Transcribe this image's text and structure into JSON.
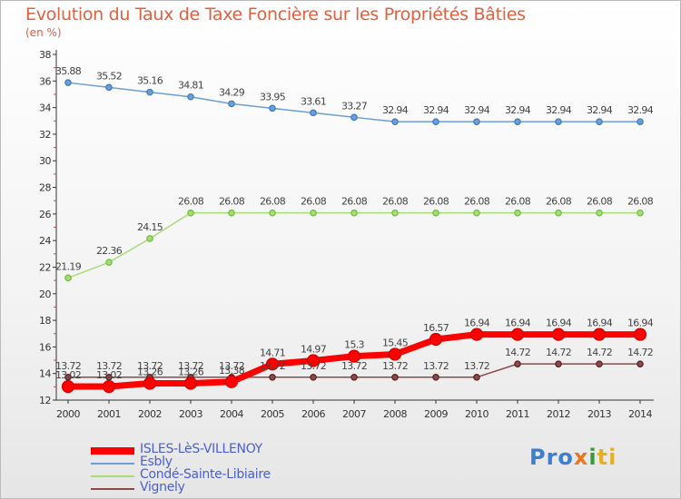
{
  "title": "Evolution du Taux de Taxe Foncière sur les Propriétés Bâties",
  "unit_label": "(en %)",
  "logo": {
    "p": "Pro",
    "x": "x",
    "i": "i",
    "ti": "ti"
  },
  "chart_data": {
    "type": "line",
    "title": "Evolution du Taux de Taxe Foncière sur les Propriétés Bâties",
    "ylabel": "(en %)",
    "xlabel": "",
    "ylim": [
      12,
      38
    ],
    "yticks": [
      12,
      14,
      16,
      18,
      20,
      22,
      24,
      26,
      28,
      30,
      32,
      34,
      36,
      38
    ],
    "grid": false,
    "legend_position": "bottom-left",
    "categories": [
      "2000",
      "2001",
      "2002",
      "2003",
      "2004",
      "2005",
      "2006",
      "2007",
      "2008",
      "2009",
      "2010",
      "2011",
      "2012",
      "2013",
      "2014"
    ],
    "series": [
      {
        "name": "ISLES-LèS-VILLENOY",
        "color": "#ff0000",
        "markerColor": "#cc0000",
        "width": 7,
        "markerR": 6.5,
        "values": [
          13.02,
          13.02,
          13.26,
          13.26,
          13.38,
          14.71,
          14.97,
          15.3,
          15.45,
          16.57,
          16.94,
          16.94,
          16.94,
          16.94,
          16.94
        ],
        "labels": [
          "13.02",
          "13.02",
          "13.26",
          "13.26",
          "13.38",
          "14.71",
          "14.97",
          "15.3",
          "15.45",
          "16.57",
          "16.94",
          "16.94",
          "16.94",
          "16.94",
          "16.94"
        ]
      },
      {
        "name": "Esbly",
        "color": "#6b9fd6",
        "markerColor": "#3a78c0",
        "width": 1.5,
        "markerR": 3.2,
        "values": [
          35.88,
          35.52,
          35.16,
          34.81,
          34.29,
          33.95,
          33.61,
          33.27,
          32.94,
          32.94,
          32.94,
          32.94,
          32.94,
          32.94,
          32.94
        ],
        "labels": [
          "35.88",
          "35.52",
          "35.16",
          "34.81",
          "34.29",
          "33.95",
          "33.61",
          "33.27",
          "32.94",
          "32.94",
          "32.94",
          "32.94",
          "32.94",
          "32.94",
          "32.94"
        ]
      },
      {
        "name": "Condé-Sainte-Libiaire",
        "color": "#a8dc78",
        "markerColor": "#6cbf3a",
        "width": 1.5,
        "markerR": 3.2,
        "values": [
          21.19,
          22.36,
          24.15,
          26.08,
          26.08,
          26.08,
          26.08,
          26.08,
          26.08,
          26.08,
          26.08,
          26.08,
          26.08,
          26.08,
          26.08
        ],
        "labels": [
          "21.19",
          "22.36",
          "24.15",
          "26.08",
          "26.08",
          "26.08",
          "26.08",
          "26.08",
          "26.08",
          "26.08",
          "26.08",
          "26.08",
          "26.08",
          "26.08",
          "26.08"
        ]
      },
      {
        "name": "Vignely",
        "color": "#8a4a4a",
        "markerColor": "#5a1e1e",
        "width": 1.5,
        "markerR": 3.2,
        "values": [
          13.72,
          13.72,
          13.72,
          13.72,
          13.72,
          13.72,
          13.72,
          13.72,
          13.72,
          13.72,
          13.72,
          14.72,
          14.72,
          14.72,
          14.72
        ],
        "labels": [
          "13.72",
          "13.72",
          "13.72",
          "13.72",
          "13.72",
          "13.72",
          "13.72",
          "13.72",
          "13.72",
          "13.72",
          "13.72",
          "14.72",
          "14.72",
          "14.72",
          "14.72"
        ]
      }
    ]
  }
}
